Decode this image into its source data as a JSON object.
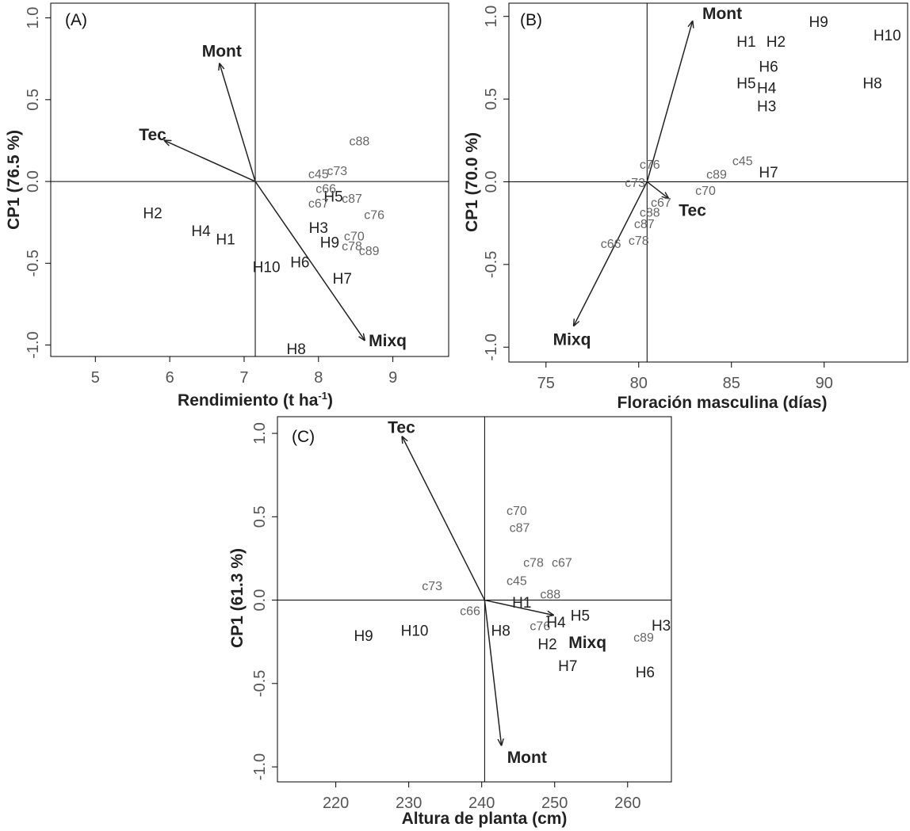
{
  "chart_data": [
    {
      "type": "scatter",
      "panel_label": "(A)",
      "xlabel": "Rendimiento (t ha",
      "xlabel_sup": "-1",
      "xlabel_end": ")",
      "ylabel": "CP1 (76.5 %)",
      "xlim": [
        4.4,
        9.75
      ],
      "ylim": [
        -1.07,
        1.09
      ],
      "xticks": [
        5,
        6,
        7,
        8,
        9
      ],
      "yticks": [
        -1.0,
        -0.5,
        0.0,
        0.5,
        1.0
      ],
      "ref_x": 7.15,
      "ref_y": 0.0,
      "vectors": [
        {
          "name": "Mont",
          "x": 6.67,
          "y": 0.72,
          "lx": 6.7,
          "ly": 0.79
        },
        {
          "name": "Tec",
          "x": 5.93,
          "y": 0.25,
          "lx": 5.77,
          "ly": 0.28
        },
        {
          "name": "Mixq",
          "x": 8.62,
          "y": -0.97,
          "lx": 8.93,
          "ly": -0.98
        }
      ],
      "points": [
        {
          "label": "H2",
          "x": 5.77,
          "y": -0.2,
          "group": "H"
        },
        {
          "label": "H4",
          "x": 6.42,
          "y": -0.31,
          "group": "H"
        },
        {
          "label": "H1",
          "x": 6.75,
          "y": -0.36,
          "group": "H"
        },
        {
          "label": "H10",
          "x": 7.3,
          "y": -0.53,
          "group": "H"
        },
        {
          "label": "H6",
          "x": 7.75,
          "y": -0.5,
          "group": "H"
        },
        {
          "label": "H3",
          "x": 8.0,
          "y": -0.29,
          "group": "H"
        },
        {
          "label": "H5",
          "x": 8.2,
          "y": -0.1,
          "group": "H"
        },
        {
          "label": "H9",
          "x": 8.15,
          "y": -0.38,
          "group": "H"
        },
        {
          "label": "H7",
          "x": 8.32,
          "y": -0.6,
          "group": "H"
        },
        {
          "label": "H8",
          "x": 7.7,
          "y": -1.03,
          "group": "H"
        },
        {
          "label": "c88",
          "x": 8.55,
          "y": 0.24,
          "group": "c"
        },
        {
          "label": "c45",
          "x": 8.0,
          "y": 0.04,
          "group": "c"
        },
        {
          "label": "c73",
          "x": 8.25,
          "y": 0.06,
          "group": "c"
        },
        {
          "label": "c66",
          "x": 8.1,
          "y": -0.05,
          "group": "c"
        },
        {
          "label": "c67",
          "x": 8.0,
          "y": -0.14,
          "group": "c"
        },
        {
          "label": "c87",
          "x": 8.45,
          "y": -0.11,
          "group": "c"
        },
        {
          "label": "c76",
          "x": 8.75,
          "y": -0.21,
          "group": "c"
        },
        {
          "label": "c70",
          "x": 8.48,
          "y": -0.34,
          "group": "c"
        },
        {
          "label": "c78",
          "x": 8.45,
          "y": -0.4,
          "group": "c"
        },
        {
          "label": "c89",
          "x": 8.68,
          "y": -0.43,
          "group": "c"
        }
      ]
    },
    {
      "type": "scatter",
      "panel_label": "(B)",
      "xlabel": "Floración masculina (días)",
      "ylabel": "CP1 (70.0 %)",
      "xlim": [
        73.0,
        94.5
      ],
      "ylim": [
        -1.09,
        1.08
      ],
      "xticks": [
        75,
        80,
        85,
        90
      ],
      "yticks": [
        -1.0,
        -0.5,
        0.0,
        0.5,
        1.0
      ],
      "ref_x": 80.45,
      "ref_y": 0.0,
      "vectors": [
        {
          "name": "Mont",
          "x": 82.9,
          "y": 0.97,
          "lx": 84.5,
          "ly": 1.01
        },
        {
          "name": "Tec",
          "x": 81.6,
          "y": -0.1,
          "lx": 82.9,
          "ly": -0.18
        },
        {
          "name": "Mixq",
          "x": 76.5,
          "y": -0.87,
          "lx": 76.4,
          "ly": -0.96
        }
      ],
      "points": [
        {
          "label": "H9",
          "x": 89.7,
          "y": 0.96,
          "group": "H"
        },
        {
          "label": "H10",
          "x": 93.4,
          "y": 0.88,
          "group": "H"
        },
        {
          "label": "H1",
          "x": 85.8,
          "y": 0.84,
          "group": "H"
        },
        {
          "label": "H2",
          "x": 87.4,
          "y": 0.84,
          "group": "H"
        },
        {
          "label": "H6",
          "x": 87.0,
          "y": 0.69,
          "group": "H"
        },
        {
          "label": "H5",
          "x": 85.8,
          "y": 0.59,
          "group": "H"
        },
        {
          "label": "H4",
          "x": 86.9,
          "y": 0.56,
          "group": "H"
        },
        {
          "label": "H8",
          "x": 92.6,
          "y": 0.59,
          "group": "H"
        },
        {
          "label": "H3",
          "x": 86.9,
          "y": 0.45,
          "group": "H"
        },
        {
          "label": "H7",
          "x": 87.0,
          "y": 0.05,
          "group": "H"
        },
        {
          "label": "c45",
          "x": 85.6,
          "y": 0.12,
          "group": "c"
        },
        {
          "label": "c89",
          "x": 84.2,
          "y": 0.04,
          "group": "c"
        },
        {
          "label": "c76",
          "x": 80.6,
          "y": 0.1,
          "group": "c"
        },
        {
          "label": "c73",
          "x": 79.8,
          "y": -0.01,
          "group": "c"
        },
        {
          "label": "c70",
          "x": 83.6,
          "y": -0.06,
          "group": "c"
        },
        {
          "label": "c67",
          "x": 81.2,
          "y": -0.13,
          "group": "c"
        },
        {
          "label": "c88",
          "x": 80.6,
          "y": -0.19,
          "group": "c"
        },
        {
          "label": "c87",
          "x": 80.3,
          "y": -0.26,
          "group": "c"
        },
        {
          "label": "c78",
          "x": 80.0,
          "y": -0.36,
          "group": "c"
        },
        {
          "label": "c66",
          "x": 78.5,
          "y": -0.38,
          "group": "c"
        }
      ]
    },
    {
      "type": "scatter",
      "panel_label": "(C)",
      "xlabel": "Altura de planta (cm)",
      "ylabel": "CP1 (61.3 %)",
      "xlim": [
        212.0,
        266.0
      ],
      "ylim": [
        -1.09,
        1.1
      ],
      "xticks": [
        220,
        230,
        240,
        250,
        260
      ],
      "yticks": [
        -1.0,
        -0.5,
        0.0,
        0.5,
        1.0
      ],
      "ref_x": 240.4,
      "ref_y": 0.0,
      "vectors": [
        {
          "name": "Tec",
          "x": 229.1,
          "y": 0.98,
          "lx": 229.0,
          "ly": 1.03
        },
        {
          "name": "Mont",
          "x": 242.7,
          "y": -0.87,
          "lx": 246.2,
          "ly": -0.95
        },
        {
          "name": "Mixq",
          "x": 249.8,
          "y": -0.09,
          "lx": 254.5,
          "ly": -0.26
        }
      ],
      "points": [
        {
          "label": "c70",
          "x": 244.8,
          "y": 0.53,
          "group": "c"
        },
        {
          "label": "c87",
          "x": 245.2,
          "y": 0.43,
          "group": "c"
        },
        {
          "label": "c78",
          "x": 247.1,
          "y": 0.22,
          "group": "c"
        },
        {
          "label": "c67",
          "x": 251.0,
          "y": 0.22,
          "group": "c"
        },
        {
          "label": "c45",
          "x": 244.8,
          "y": 0.11,
          "group": "c"
        },
        {
          "label": "c73",
          "x": 233.2,
          "y": 0.08,
          "group": "c"
        },
        {
          "label": "c88",
          "x": 249.4,
          "y": 0.03,
          "group": "c"
        },
        {
          "label": "c66",
          "x": 238.4,
          "y": -0.07,
          "group": "c"
        },
        {
          "label": "c76",
          "x": 248.0,
          "y": -0.16,
          "group": "c"
        },
        {
          "label": "c89",
          "x": 262.2,
          "y": -0.23,
          "group": "c"
        },
        {
          "label": "H1",
          "x": 245.5,
          "y": -0.02,
          "group": "H"
        },
        {
          "label": "H4",
          "x": 250.2,
          "y": -0.14,
          "group": "H"
        },
        {
          "label": "H5",
          "x": 253.5,
          "y": -0.1,
          "group": "H"
        },
        {
          "label": "H3",
          "x": 264.6,
          "y": -0.16,
          "group": "H"
        },
        {
          "label": "H8",
          "x": 242.6,
          "y": -0.19,
          "group": "H"
        },
        {
          "label": "H10",
          "x": 230.8,
          "y": -0.19,
          "group": "H"
        },
        {
          "label": "H9",
          "x": 223.8,
          "y": -0.22,
          "group": "H"
        },
        {
          "label": "H2",
          "x": 249.0,
          "y": -0.27,
          "group": "H"
        },
        {
          "label": "H7",
          "x": 251.8,
          "y": -0.4,
          "group": "H"
        },
        {
          "label": "H6",
          "x": 262.4,
          "y": -0.44,
          "group": "H"
        }
      ]
    }
  ]
}
